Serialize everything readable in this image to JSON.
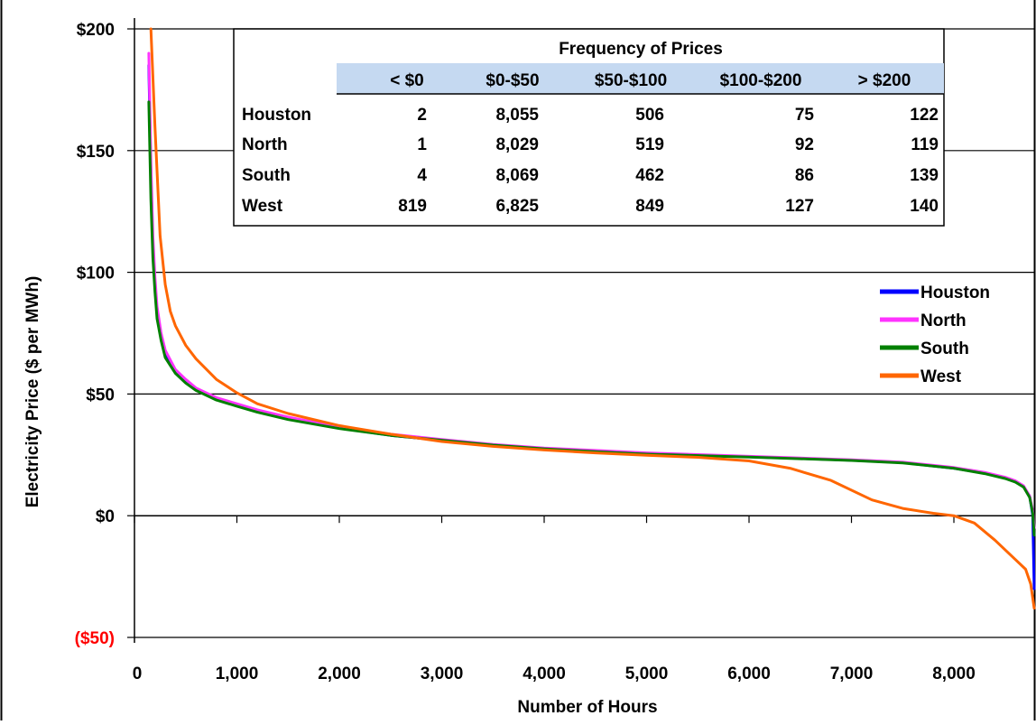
{
  "chart_data": {
    "type": "line",
    "title": "",
    "xlabel": "Number of Hours",
    "ylabel": "Electricity Price ($ per MWh)",
    "xlim": [
      0,
      8784
    ],
    "ylim": [
      -50,
      200
    ],
    "x_ticks": [
      0,
      1000,
      2000,
      3000,
      4000,
      5000,
      6000,
      7000,
      8000
    ],
    "x_tick_labels": [
      "0",
      "1,000",
      "2,000",
      "3,000",
      "4,000",
      "5,000",
      "6,000",
      "7,000",
      "8,000"
    ],
    "y_ticks": [
      -50,
      0,
      50,
      100,
      150,
      200
    ],
    "y_tick_labels": [
      "($50)",
      "$0",
      "$50",
      "$100",
      "$150",
      "$200"
    ],
    "negative_tick_color": "#ff0000",
    "grid": "horizontal",
    "legend_position": "right",
    "series": [
      {
        "name": "Houston",
        "color": "#0000ff",
        "x": [
          140,
          160,
          180,
          200,
          220,
          260,
          300,
          400,
          500,
          600,
          800,
          1000,
          1200,
          1500,
          2000,
          2500,
          3000,
          3500,
          4000,
          4500,
          5000,
          5500,
          6000,
          6500,
          7000,
          7500,
          8000,
          8300,
          8500,
          8600,
          8680,
          8740,
          8770,
          8784
        ],
        "y": [
          185,
          140,
          110,
          95,
          83,
          73,
          66,
          59,
          55,
          52,
          48,
          45.5,
          43,
          40,
          36,
          33,
          31,
          29,
          27.5,
          26.5,
          25.5,
          24.8,
          24.2,
          23.5,
          22.8,
          21.8,
          19.5,
          17.5,
          15.5,
          14,
          12,
          8,
          0,
          -30
        ]
      },
      {
        "name": "North",
        "color": "#ff33ff",
        "x": [
          140,
          160,
          180,
          200,
          220,
          260,
          300,
          400,
          500,
          600,
          800,
          1000,
          1200,
          1500,
          2000,
          2500,
          3000,
          3500,
          4000,
          4500,
          5000,
          5500,
          6000,
          6500,
          7000,
          7500,
          8000,
          8300,
          8500,
          8600,
          8680,
          8740,
          8770,
          8784
        ],
        "y": [
          190,
          145,
          115,
          98,
          86,
          75,
          68,
          60,
          56,
          52.5,
          48.5,
          46,
          43.5,
          40.5,
          36.5,
          33.5,
          31.3,
          29.3,
          27.8,
          26.8,
          25.8,
          25.1,
          24.4,
          23.7,
          23,
          22,
          19.8,
          17.8,
          15.8,
          14.3,
          12.3,
          8,
          2,
          -5
        ]
      },
      {
        "name": "South",
        "color": "#008000",
        "x": [
          140,
          160,
          180,
          200,
          220,
          260,
          300,
          400,
          500,
          600,
          800,
          1000,
          1200,
          1500,
          2000,
          2500,
          3000,
          3500,
          4000,
          4500,
          5000,
          5500,
          6000,
          6500,
          7000,
          7500,
          8000,
          8300,
          8500,
          8600,
          8680,
          8740,
          8770,
          8784
        ],
        "y": [
          170,
          130,
          106,
          92,
          81,
          72,
          65,
          58.5,
          54.5,
          51.5,
          47.5,
          45,
          42.5,
          39.5,
          35.8,
          33,
          31,
          29,
          27.5,
          26.3,
          25.3,
          24.7,
          24.1,
          23.4,
          22.7,
          21.7,
          19.5,
          17.3,
          15.3,
          13.8,
          11.8,
          7.5,
          1,
          -8
        ]
      },
      {
        "name": "West",
        "color": "#ff6600",
        "x": [
          160,
          200,
          250,
          300,
          350,
          400,
          500,
          600,
          800,
          1000,
          1200,
          1500,
          2000,
          2500,
          3000,
          3500,
          4000,
          4500,
          5000,
          5500,
          6000,
          6400,
          6800,
          7200,
          7500,
          7800,
          8000,
          8200,
          8400,
          8600,
          8700,
          8750,
          8784
        ],
        "y": [
          200,
          160,
          115,
          95,
          84,
          78,
          70,
          64.5,
          56,
          50.5,
          46,
          42,
          37,
          33.5,
          30.5,
          28.5,
          27,
          25.8,
          24.8,
          24,
          22.5,
          19.5,
          14.5,
          6.5,
          3,
          1,
          0,
          -3,
          -10,
          -18,
          -22,
          -28,
          -38
        ]
      }
    ],
    "table": {
      "title": "Frequency of Prices",
      "columns": [
        "< $0",
        "$0-$50",
        "$50-$100",
        "$100-$200",
        "> $200"
      ],
      "rows": [
        {
          "label": "Houston",
          "values": [
            "2",
            "8,055",
            "506",
            "75",
            "122"
          ]
        },
        {
          "label": "North",
          "values": [
            "1",
            "8,029",
            "519",
            "92",
            "119"
          ]
        },
        {
          "label": "South",
          "values": [
            "4",
            "8,069",
            "462",
            "86",
            "139"
          ]
        },
        {
          "label": "West",
          "values": [
            "819",
            "6,825",
            "849",
            "127",
            "140"
          ]
        }
      ]
    }
  }
}
